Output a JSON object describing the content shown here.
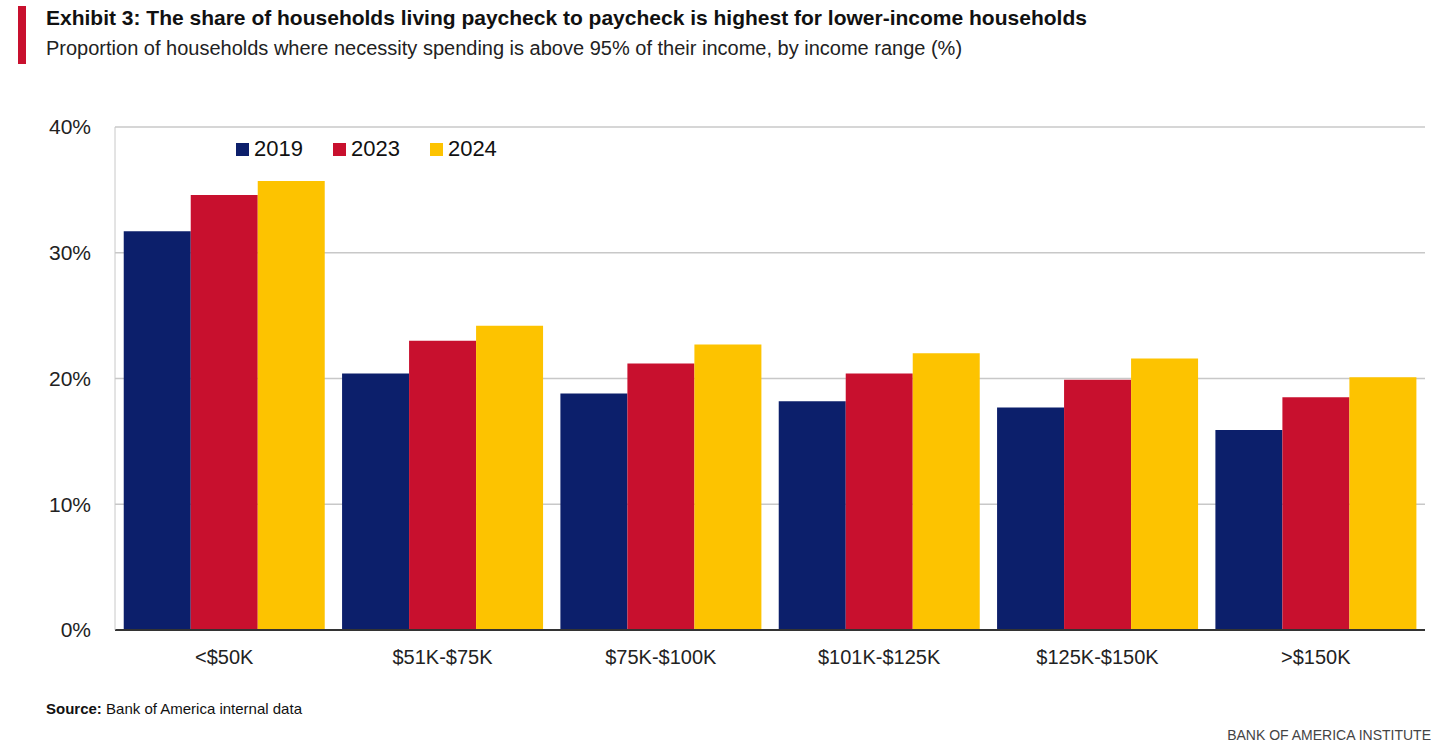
{
  "chart_data": {
    "type": "bar",
    "title": "Exhibit 3: The share of households living paycheck to paycheck is highest for lower-income households",
    "subtitle": "Proportion of households where necessity spending is above 95% of their income, by income range (%)",
    "categories": [
      "<$50K",
      "$51K-$75K",
      "$75K-$100K",
      "$101K-$125K",
      "$125K-$150K",
      ">$150K"
    ],
    "series": [
      {
        "name": "2019",
        "color": "#0c1f6b",
        "values": [
          31.7,
          20.4,
          18.8,
          18.2,
          17.7,
          15.9
        ]
      },
      {
        "name": "2023",
        "color": "#c8102e",
        "values": [
          34.6,
          23.0,
          21.2,
          20.4,
          19.9,
          18.5
        ]
      },
      {
        "name": "2024",
        "color": "#fdc300",
        "values": [
          35.7,
          24.2,
          22.7,
          22.0,
          21.6,
          20.1
        ]
      }
    ],
    "ylim": [
      0,
      40
    ],
    "yticks": [
      {
        "value": 0,
        "label": "0%"
      },
      {
        "value": 10,
        "label": "10%"
      },
      {
        "value": 20,
        "label": "20%"
      },
      {
        "value": 30,
        "label": "30%"
      },
      {
        "value": 40,
        "label": "40%"
      }
    ],
    "grid": true,
    "legend": "top",
    "source_label": "Source:",
    "source": "Bank of America internal data",
    "footer": "BANK OF AMERICA INSTITUTE"
  }
}
